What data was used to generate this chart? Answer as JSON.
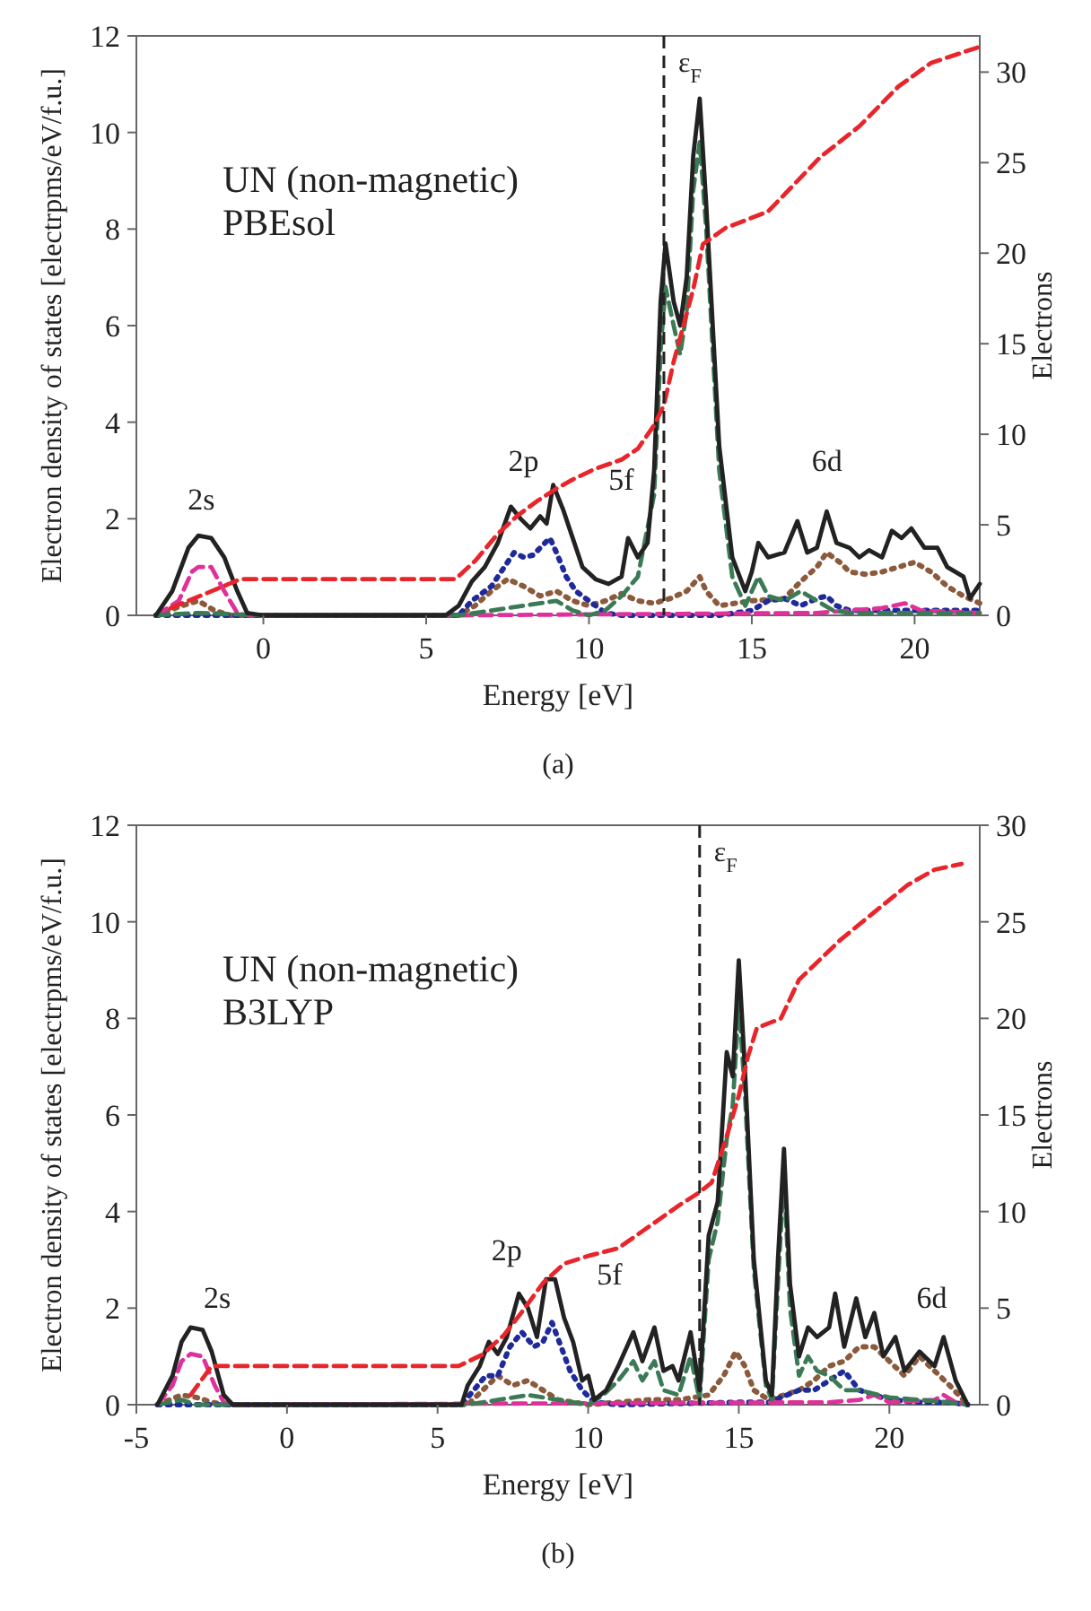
{
  "chart_data": [
    {
      "type": "line",
      "title": "(a)",
      "xlabel": "Energy [eV]",
      "ylabel": "Electron density of states [electrpms/eV/f.u.]",
      "y2label": "Electrons",
      "xlim": [
        -3.9,
        22
      ],
      "xticks": [
        0,
        5,
        10,
        15,
        20
      ],
      "ylim": [
        0,
        12
      ],
      "yticks": [
        0,
        2,
        4,
        6,
        8,
        10,
        12
      ],
      "y2lim": [
        0,
        32
      ],
      "y2ticks": [
        0,
        5,
        10,
        15,
        20,
        25,
        30
      ],
      "ref_lines": [
        {
          "axis": "x",
          "value": 12.3,
          "label": "ε$_{F}$",
          "color": "#222222",
          "line_style": "dashed"
        }
      ],
      "annotations": [
        "UN (non-magnetic)",
        "PBEsol",
        "2s",
        "2p",
        "5f",
        "6d"
      ],
      "series": [
        {
          "color": "#8b5a3c",
          "line_style": "dotted",
          "x": [
            -3.3,
            -2.5,
            -2,
            -1.5,
            -1,
            6,
            6.5,
            7,
            7.5,
            8,
            8.5,
            9,
            9.5,
            10,
            10.5,
            11,
            11.5,
            12,
            12.5,
            13,
            13.4,
            13.6,
            14,
            15,
            16,
            16.5,
            17,
            17.3,
            17.7,
            18,
            18.5,
            19,
            19.5,
            20,
            20.5,
            21,
            21.5,
            22
          ],
          "values": [
            0,
            0.2,
            0.3,
            0.1,
            0,
            0,
            0.2,
            0.5,
            0.75,
            0.6,
            0.4,
            0.5,
            0.3,
            0.2,
            0.3,
            0.45,
            0.3,
            0.25,
            0.35,
            0.5,
            0.8,
            0.5,
            0.2,
            0.3,
            0.35,
            0.7,
            1.0,
            1.3,
            1.1,
            0.9,
            0.85,
            0.9,
            1.0,
            1.1,
            0.9,
            0.6,
            0.4,
            0.25
          ]
        },
        {
          "color": "#1f2a9a",
          "line_style": "dotted",
          "x": [
            -3.3,
            5.6,
            6,
            6.4,
            7,
            7.5,
            7.7,
            8,
            8.3,
            8.5,
            8.8,
            9,
            9.3,
            9.6,
            10,
            10.5,
            11,
            14,
            15,
            15.5,
            16,
            16.5,
            17,
            17.3,
            17.6,
            18,
            19,
            20,
            21,
            22
          ],
          "values": [
            0,
            0,
            0,
            0.3,
            0.6,
            1.1,
            1.3,
            1.2,
            1.25,
            1.4,
            1.6,
            1.3,
            0.8,
            0.5,
            0.3,
            0.05,
            0,
            0,
            0.1,
            0.3,
            0.35,
            0.2,
            0.35,
            0.4,
            0.2,
            0.1,
            0.1,
            0.1,
            0.1,
            0.1
          ]
        },
        {
          "color": "#e0309a",
          "line_style": "dashed",
          "x": [
            -3.3,
            -2.6,
            -2.2,
            -2,
            -1.6,
            -1.2,
            -0.8,
            -0.5,
            6,
            17,
            19,
            19.7,
            20.2,
            22
          ],
          "values": [
            0,
            0.3,
            0.9,
            1.0,
            1.0,
            0.5,
            0.05,
            0,
            0,
            0.05,
            0.15,
            0.25,
            0.1,
            0.05
          ]
        },
        {
          "color": "#3a7a55",
          "line_style": "dashed",
          "x": [
            -3.3,
            -2,
            0,
            6,
            7,
            8,
            9,
            9.5,
            10,
            10.5,
            11,
            11.5,
            12,
            12.2,
            12.35,
            12.6,
            12.8,
            13,
            13.2,
            13.4,
            13.6,
            14,
            14.4,
            14.8,
            15.2,
            15.5,
            16,
            16.5,
            17,
            17.5,
            18,
            20,
            22
          ],
          "values": [
            0,
            0.05,
            0,
            0,
            0.1,
            0.2,
            0.3,
            0.1,
            0,
            0.1,
            0.4,
            0.8,
            2.5,
            5.5,
            6.8,
            6.0,
            5.4,
            6.3,
            8.8,
            9.8,
            8,
            3,
            0.8,
            0.2,
            0.8,
            0.4,
            0.3,
            0.5,
            0.3,
            0.1,
            0.05,
            0.05,
            0.05
          ]
        },
        {
          "color": "#222222",
          "line_style": "solid",
          "x": [
            -3.3,
            -2.8,
            -2.3,
            -2,
            -1.6,
            -1.2,
            -0.8,
            -0.5,
            0,
            5.6,
            6,
            6.4,
            6.8,
            7.2,
            7.6,
            7.9,
            8.2,
            8.5,
            8.7,
            8.9,
            9.2,
            9.5,
            9.8,
            10.2,
            10.6,
            11,
            11.2,
            11.5,
            11.8,
            12,
            12.2,
            12.35,
            12.6,
            12.8,
            13,
            13.2,
            13.4,
            13.6,
            14,
            14.4,
            14.8,
            15,
            15.2,
            15.5,
            16,
            16.4,
            16.7,
            17,
            17.3,
            17.6,
            18,
            18.3,
            18.6,
            19,
            19.3,
            19.6,
            19.9,
            20.3,
            20.7,
            21,
            21.5,
            21.7,
            22
          ],
          "values": [
            0,
            0.5,
            1.4,
            1.65,
            1.6,
            1.2,
            0.5,
            0.05,
            0,
            0,
            0.2,
            0.7,
            1.0,
            1.5,
            2.25,
            2.0,
            1.8,
            2.05,
            1.9,
            2.7,
            2.2,
            1.6,
            1.0,
            0.75,
            0.65,
            0.8,
            1.6,
            1.2,
            1.5,
            3,
            6.5,
            7.7,
            6.5,
            6.0,
            7,
            9.5,
            10.7,
            8.5,
            3.5,
            1.2,
            0.5,
            0.9,
            1.5,
            1.2,
            1.3,
            1.95,
            1.3,
            1.4,
            2.15,
            1.5,
            1.4,
            1.2,
            1.35,
            1.2,
            1.75,
            1.6,
            1.8,
            1.4,
            1.4,
            1.0,
            0.8,
            0.35,
            0.65
          ]
        },
        {
          "color": "#e8252a",
          "line_style": "dashed",
          "axis": "y2",
          "x": [
            -2.85,
            -0.7,
            5.9,
            6.5,
            7.2,
            7.8,
            8.4,
            9,
            9.5,
            10.2,
            11,
            11.5,
            12,
            12.3,
            12.6,
            12.9,
            13.2,
            13.5,
            14.2,
            15.5,
            17.1,
            18.3,
            19.5,
            20.5,
            22
          ],
          "values": [
            0.4,
            2.0,
            2.0,
            3,
            4.5,
            5.5,
            6.3,
            7,
            7.5,
            8.1,
            8.6,
            9.2,
            10.5,
            11.6,
            14,
            16,
            18,
            20.5,
            21.4,
            22.3,
            25.3,
            27,
            29.2,
            30.5,
            31.4
          ]
        }
      ]
    },
    {
      "type": "line",
      "title": "(b)",
      "xlabel": "Energy [eV]",
      "ylabel": "Electron density of states [electrpms/eV/f.u.]",
      "y2label": "Electrons",
      "xlim": [
        -5,
        23
      ],
      "xticks": [
        -5,
        0,
        5,
        10,
        15,
        20
      ],
      "ylim": [
        0,
        12
      ],
      "yticks": [
        0,
        2,
        4,
        6,
        8,
        10,
        12
      ],
      "y2lim": [
        0,
        30
      ],
      "y2ticks": [
        0,
        5,
        10,
        15,
        20,
        25,
        30
      ],
      "ref_lines": [
        {
          "axis": "x",
          "value": 13.7,
          "label": "ε$_{F}$",
          "color": "#222222",
          "line_style": "dashed"
        }
      ],
      "annotations": [
        "UN (non-magnetic)",
        "B3LYP",
        "2s",
        "2p",
        "5f",
        "6d"
      ],
      "series": [
        {
          "color": "#8b5a3c",
          "line_style": "dotted",
          "x": [
            -4.3,
            -3.5,
            -3,
            -2.5,
            -2,
            6,
            6.5,
            7,
            7.5,
            8,
            8.5,
            9,
            10,
            11,
            12,
            13,
            14,
            14.5,
            14.9,
            15.2,
            15.5,
            16,
            16.5,
            17,
            17.5,
            18,
            18.5,
            19,
            19.5,
            20,
            20.5,
            21,
            21.5,
            22,
            22.6
          ],
          "values": [
            0,
            0.2,
            0.15,
            0.05,
            0,
            0,
            0.3,
            0.6,
            0.4,
            0.5,
            0.3,
            0.1,
            0,
            0.05,
            0.1,
            0.1,
            0.2,
            0.6,
            1.1,
            0.8,
            0.3,
            0.1,
            0.2,
            0.3,
            0.5,
            0.8,
            0.9,
            1.2,
            1.2,
            0.9,
            0.6,
            1.0,
            0.7,
            0.4,
            0
          ]
        },
        {
          "color": "#1f2a9a",
          "line_style": "dotted",
          "x": [
            -4.3,
            5.8,
            6.2,
            6.6,
            7,
            7.4,
            7.8,
            8.2,
            8.5,
            8.8,
            9.1,
            9.4,
            9.8,
            10.2,
            11,
            15,
            16,
            17,
            17.5,
            18,
            18.5,
            19,
            20,
            21,
            22,
            22.6
          ],
          "values": [
            0,
            0,
            0.3,
            0.6,
            0.6,
            1.2,
            1.5,
            1.2,
            1.3,
            1.7,
            1.2,
            0.7,
            0.3,
            0.05,
            0,
            0.05,
            0.05,
            0.3,
            0.3,
            0.5,
            0.7,
            0.3,
            0.1,
            0.05,
            0.05,
            0
          ]
        },
        {
          "color": "#e0309a",
          "line_style": "dashed",
          "x": [
            -4.3,
            -3.8,
            -3.5,
            -3.2,
            -2.8,
            -2.4,
            -2.1,
            -1.8,
            18,
            19,
            19.5,
            20,
            21.5,
            21.8,
            22.2,
            22.6
          ],
          "values": [
            0,
            0.4,
            0.9,
            1.05,
            1.0,
            0.4,
            0.05,
            0,
            0.05,
            0.1,
            0.2,
            0.05,
            0.1,
            0.2,
            0.05,
            0
          ]
        },
        {
          "color": "#3a7a55",
          "line_style": "dashed",
          "x": [
            -4.3,
            -3.5,
            -3,
            6,
            7,
            8,
            9,
            10,
            10.5,
            11,
            11.5,
            11.8,
            12.2,
            12.5,
            13,
            13.4,
            13.7,
            14,
            14.3,
            14.6,
            14.8,
            15,
            15.2,
            15.5,
            15.9,
            16.1,
            16.3,
            16.5,
            16.7,
            17,
            17.3,
            17.6,
            18,
            18.5,
            19,
            20,
            21,
            22,
            22.6
          ],
          "values": [
            0,
            0.1,
            0,
            0,
            0.1,
            0.2,
            0.1,
            0,
            0.2,
            0.5,
            0.9,
            0.5,
            0.9,
            0.3,
            0.2,
            1.0,
            0.1,
            3.0,
            3.8,
            5.5,
            6.2,
            8.3,
            6.5,
            2.8,
            0.4,
            0.1,
            2.5,
            4.8,
            2.0,
            0.6,
            1.0,
            0.7,
            0.6,
            0.3,
            0.3,
            0.15,
            0.1,
            0.05,
            0
          ]
        },
        {
          "color": "#222222",
          "line_style": "solid",
          "x": [
            -4.3,
            -3.8,
            -3.5,
            -3.2,
            -2.8,
            -2.5,
            -2.1,
            -1.8,
            5.8,
            6,
            6.4,
            6.7,
            7,
            7.3,
            7.7,
            8,
            8.3,
            8.6,
            8.9,
            9.2,
            9.5,
            9.8,
            10,
            10.2,
            10.6,
            11,
            11.5,
            11.8,
            12.2,
            12.5,
            12.8,
            13,
            13.4,
            13.7,
            14,
            14.3,
            14.6,
            14.8,
            15,
            15.2,
            15.5,
            15.9,
            16.1,
            16.3,
            16.5,
            16.7,
            17,
            17.3,
            17.6,
            18,
            18.2,
            18.5,
            18.9,
            19.2,
            19.5,
            19.8,
            20.2,
            20.5,
            21,
            21.5,
            21.8,
            22.2,
            22.6
          ],
          "values": [
            0,
            0.6,
            1.3,
            1.6,
            1.55,
            1.1,
            0.2,
            0,
            0,
            0.4,
            0.8,
            1.3,
            1.05,
            1.4,
            2.3,
            2.0,
            1.4,
            2.6,
            2.6,
            1.8,
            1.3,
            0.5,
            0.6,
            0.1,
            0.3,
            0.8,
            1.5,
            0.9,
            1.6,
            0.7,
            0.8,
            0.5,
            1.5,
            0.3,
            3.5,
            4.2,
            7.3,
            6.8,
            9.2,
            7,
            3,
            0.5,
            0.2,
            3,
            5.3,
            2.5,
            1.0,
            1.6,
            1.4,
            1.6,
            2.3,
            1.2,
            2.2,
            1.4,
            1.9,
            1.0,
            1.4,
            0.7,
            1.1,
            0.8,
            1.4,
            0.5,
            0
          ]
        },
        {
          "color": "#e8252a",
          "line_style": "dashed",
          "axis": "y2",
          "x": [
            -3.2,
            -2.5,
            5.7,
            6.5,
            7.2,
            7.8,
            8.5,
            9.2,
            10,
            11,
            12,
            13,
            13.7,
            14.1,
            14.6,
            15,
            15.3,
            15.6,
            16.4,
            16.7,
            17,
            18.4,
            19.5,
            20.6,
            21.5,
            22.4
          ],
          "values": [
            0.5,
            2.0,
            2.0,
            2.6,
            3.6,
            4.8,
            6.3,
            7.3,
            7.7,
            8.1,
            9.2,
            10.3,
            11,
            11.5,
            13.9,
            16,
            18,
            19.5,
            20,
            21,
            22,
            24.1,
            25.5,
            26.9,
            27.7,
            28
          ]
        }
      ]
    }
  ]
}
